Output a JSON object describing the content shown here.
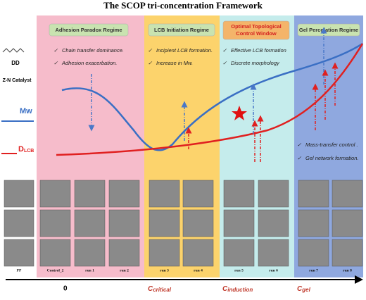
{
  "title": "The SCOP tri-concentration Framework",
  "legend": {
    "monomer": "DD",
    "catalyst": "Z-N Catalyst",
    "mw": "Mw",
    "dlcb": {
      "main": "D",
      "sub": "LCB"
    }
  },
  "regimes": [
    {
      "title": [
        "Adhesion Paradox Regime"
      ],
      "bullets": [
        "Chain transfer dominance.",
        "Adhesion exacerbation."
      ]
    },
    {
      "title": [
        "LCB Initiation Regime"
      ],
      "bullets": [
        "Incipient LCB formation.",
        "Increase in Mw."
      ]
    },
    {
      "title": [
        "Optimal Topological",
        "Control Window"
      ],
      "bullets": [
        "Effective LCB formation",
        "Discrete morphology"
      ]
    },
    {
      "title": [
        "Gel Percolation Regime"
      ],
      "bullets": [
        "Mass-transfer control .",
        "Gel network formation."
      ]
    }
  ],
  "samples": [
    "PP",
    "Control_2",
    "run 1",
    "run 2",
    "run 3",
    "run 4",
    "run 5",
    "run 6",
    "run 7",
    "run 8"
  ],
  "axis": [
    {
      "main": "0"
    },
    {
      "main": "C",
      "sub": "critical"
    },
    {
      "main": "C",
      "sub": "induction"
    },
    {
      "main": "C",
      "sub": "gel"
    }
  ]
}
